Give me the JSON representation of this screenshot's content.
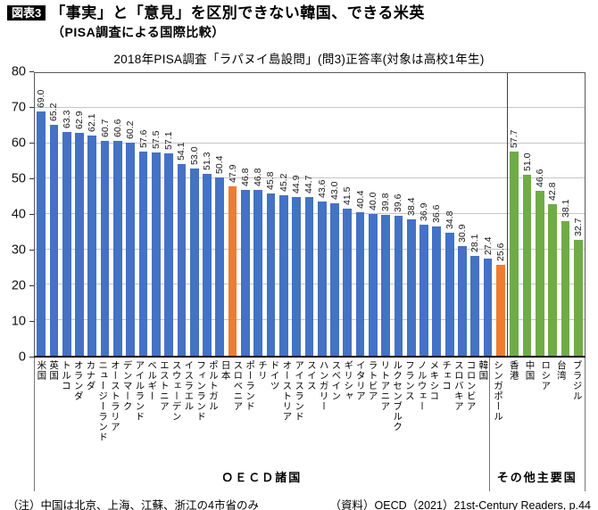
{
  "header": {
    "badge": "図表3",
    "title": "「事実」と「意見」を区別できない韓国、できる米英",
    "subtitle": "（PISA調査による国際比較）"
  },
  "chart_data": {
    "type": "bar",
    "title": "2018年PISA調査「ラパヌイ島設問」(問3)正答率(対象は高校1年生)",
    "xlabel": "",
    "ylabel": "",
    "ylim": [
      0,
      80
    ],
    "yticks": [
      0,
      10,
      20,
      30,
      40,
      50,
      60,
      70,
      80
    ],
    "grid": true,
    "value_label_format": "one-decimal, rotated 90° above bar",
    "colors": {
      "oecd": "#4472C4",
      "highlight": "#ED7D31",
      "others": "#6FAC47"
    },
    "groups": [
      {
        "label": "ＯＥＣＤ諸国",
        "color_key": "oecd",
        "bars": [
          {
            "name": "米国",
            "value": 69.0
          },
          {
            "name": "英国",
            "value": 65.2
          },
          {
            "name": "トルコ",
            "value": 63.3
          },
          {
            "name": "オランダ",
            "value": 62.9
          },
          {
            "name": "カナダ",
            "value": 62.1
          },
          {
            "name": "ニュージーランド",
            "value": 60.7
          },
          {
            "name": "オーストラリア",
            "value": 60.6
          },
          {
            "name": "デンマーク",
            "value": 60.2
          },
          {
            "name": "アイルランド",
            "value": 57.6
          },
          {
            "name": "ベルギー",
            "value": 57.5
          },
          {
            "name": "エストニア",
            "value": 57.1
          },
          {
            "name": "スウェーデン",
            "value": 54.1
          },
          {
            "name": "イスラエル",
            "value": 53.0
          },
          {
            "name": "フィンランド",
            "value": 51.3
          },
          {
            "name": "ポルトガル",
            "value": 50.4
          },
          {
            "name": "日本",
            "value": 47.9,
            "highlight": true
          },
          {
            "name": "スロベニア",
            "value": 46.8
          },
          {
            "name": "ポーランド",
            "value": 46.8
          },
          {
            "name": "チリ",
            "value": 45.8
          },
          {
            "name": "ドイツ",
            "value": 45.2
          },
          {
            "name": "オーストリア",
            "value": 44.9
          },
          {
            "name": "アイスランド",
            "value": 44.7
          },
          {
            "name": "スイス",
            "value": 43.6
          },
          {
            "name": "ハンガリー",
            "value": 43.0
          },
          {
            "name": "スペイン",
            "value": 41.5
          },
          {
            "name": "ギリシャ",
            "value": 40.4
          },
          {
            "name": "イタリア",
            "value": 40.0
          },
          {
            "name": "ラトビア",
            "value": 39.8
          },
          {
            "name": "リトアニア",
            "value": 39.6
          },
          {
            "name": "ルクセンブルク",
            "value": 38.4
          },
          {
            "name": "フランス",
            "value": 36.9
          },
          {
            "name": "ノルウェー",
            "value": 36.6
          },
          {
            "name": "メキシコ",
            "value": 34.8
          },
          {
            "name": "チェコ",
            "value": 30.9
          },
          {
            "name": "スロバキア",
            "value": 28.1
          },
          {
            "name": "コロンビア",
            "value": 27.4
          },
          {
            "name": "韓国",
            "value": 25.6,
            "highlight": true
          }
        ]
      },
      {
        "label": "その他主要国",
        "color_key": "others",
        "bars": [
          {
            "name": "シンガポール",
            "value": 57.7
          },
          {
            "name": "香港",
            "value": 51.0
          },
          {
            "name": "中国",
            "value": 46.6
          },
          {
            "name": "ロシア",
            "value": 42.8
          },
          {
            "name": "台湾",
            "value": 38.1
          },
          {
            "name": "ブラジル",
            "value": 32.7
          }
        ]
      }
    ]
  },
  "footer": {
    "note": "（注）中国は北京、上海、江蘇、浙江の4市省のみ",
    "source": "（資料）OECD（2021）21st-Century Readers, p.44"
  }
}
